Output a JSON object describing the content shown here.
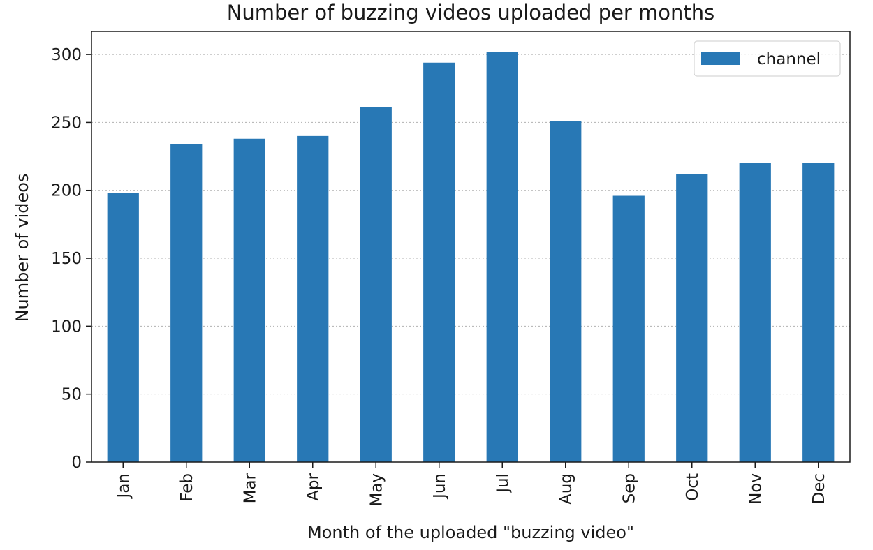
{
  "chart_data": {
    "type": "bar",
    "title": "Number of buzzing videos uploaded per months",
    "xlabel": "Month of the uploaded \"buzzing video\"",
    "ylabel": "Number of videos",
    "categories": [
      "Jan",
      "Feb",
      "Mar",
      "Apr",
      "May",
      "Jun",
      "Jul",
      "Aug",
      "Sep",
      "Oct",
      "Nov",
      "Dec"
    ],
    "series": [
      {
        "name": "channel",
        "color": "#2878b5",
        "values": [
          198,
          234,
          238,
          240,
          261,
          294,
          302,
          251,
          196,
          212,
          220,
          220
        ]
      }
    ],
    "yticks": [
      0,
      50,
      100,
      150,
      200,
      250,
      300
    ],
    "ylim": [
      0,
      317
    ],
    "grid": "y-dotted",
    "legend_position": "top-right",
    "x_tick_rotation": "vertical"
  }
}
